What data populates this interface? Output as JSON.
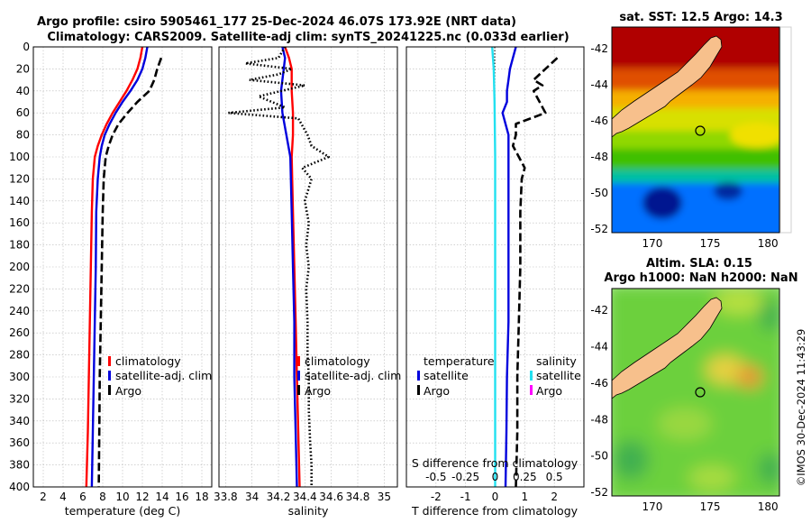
{
  "header": {
    "title_line1": "Argo profile: csiro 5905461_177 25-Dec-2024 46.07S 173.92E (NRT data)",
    "title_line2": "Climatology: CARS2009. Satellite-adj clim: synTS_20241225.nc (0.033d earlier)"
  },
  "watermark": "©IMOS 30-Dec-2024 11:43:29",
  "colors": {
    "climatology": "#ff0000",
    "satellite": "#0000dd",
    "argo": "#000000",
    "salinity_sat": "#22e0f0",
    "salinity_argo": "#ff00ff",
    "grid": "#b8b8b8",
    "land": "#f7c08c"
  },
  "chart_data": [
    {
      "id": "temperature",
      "type": "line",
      "xlabel": "temperature (deg C)",
      "xlim": [
        1,
        19
      ],
      "xticks": [
        2,
        4,
        6,
        8,
        10,
        12,
        14,
        16,
        18
      ],
      "ylim": [
        400,
        0
      ],
      "yticks": [
        0,
        20,
        40,
        60,
        80,
        100,
        120,
        140,
        160,
        180,
        200,
        220,
        240,
        260,
        280,
        300,
        320,
        340,
        360,
        380,
        400
      ],
      "legend": [
        "climatology",
        "satellite-adj. clim",
        "Argo"
      ],
      "series": [
        {
          "name": "climatology",
          "color": "#ff0000",
          "style": "solid",
          "points": [
            [
              12.0,
              0
            ],
            [
              11.8,
              10
            ],
            [
              11.5,
              20
            ],
            [
              11.0,
              30
            ],
            [
              10.4,
              40
            ],
            [
              9.7,
              50
            ],
            [
              9.0,
              60
            ],
            [
              8.4,
              70
            ],
            [
              7.9,
              80
            ],
            [
              7.5,
              90
            ],
            [
              7.2,
              100
            ],
            [
              7.0,
              120
            ],
            [
              6.9,
              150
            ],
            [
              6.8,
              200
            ],
            [
              6.7,
              250
            ],
            [
              6.6,
              300
            ],
            [
              6.5,
              350
            ],
            [
              6.35,
              400
            ]
          ]
        },
        {
          "name": "satellite-adj. clim",
          "color": "#0000dd",
          "style": "solid",
          "points": [
            [
              12.5,
              0
            ],
            [
              12.3,
              10
            ],
            [
              12.0,
              20
            ],
            [
              11.5,
              30
            ],
            [
              10.8,
              40
            ],
            [
              10.0,
              50
            ],
            [
              9.3,
              60
            ],
            [
              8.7,
              70
            ],
            [
              8.2,
              80
            ],
            [
              7.9,
              90
            ],
            [
              7.7,
              100
            ],
            [
              7.5,
              120
            ],
            [
              7.35,
              150
            ],
            [
              7.3,
              200
            ],
            [
              7.2,
              250
            ],
            [
              7.1,
              300
            ],
            [
              7.0,
              350
            ],
            [
              6.9,
              400
            ]
          ]
        },
        {
          "name": "Argo",
          "color": "#000000",
          "style": "dashed",
          "points": [
            [
              13.9,
              10
            ],
            [
              13.5,
              20
            ],
            [
              13.2,
              30
            ],
            [
              12.7,
              40
            ],
            [
              11.5,
              50
            ],
            [
              10.5,
              60
            ],
            [
              9.6,
              70
            ],
            [
              9.0,
              80
            ],
            [
              8.6,
              90
            ],
            [
              8.3,
              100
            ],
            [
              8.1,
              120
            ],
            [
              8.0,
              150
            ],
            [
              7.9,
              200
            ],
            [
              7.8,
              250
            ],
            [
              7.7,
              300
            ],
            [
              7.65,
              350
            ],
            [
              7.6,
              400
            ]
          ]
        }
      ]
    },
    {
      "id": "salinity",
      "type": "line",
      "xlabel": "salinity",
      "xlim": [
        33.75,
        35.1
      ],
      "xticks": [
        33.8,
        34,
        34.2,
        34.4,
        34.6,
        34.8,
        35
      ],
      "ylim": [
        400,
        0
      ],
      "legend": [
        "climatology",
        "satellite-adj. clim",
        "Argo"
      ],
      "series": [
        {
          "name": "climatology",
          "color": "#ff0000",
          "style": "solid",
          "points": [
            [
              34.25,
              0
            ],
            [
              34.28,
              10
            ],
            [
              34.3,
              20
            ],
            [
              34.3,
              40
            ],
            [
              34.31,
              60
            ],
            [
              34.31,
              80
            ],
            [
              34.3,
              100
            ],
            [
              34.31,
              150
            ],
            [
              34.32,
              200
            ],
            [
              34.33,
              250
            ],
            [
              34.34,
              300
            ],
            [
              34.35,
              350
            ],
            [
              34.36,
              400
            ]
          ]
        },
        {
          "name": "satellite-adj. clim",
          "color": "#0000dd",
          "style": "solid",
          "points": [
            [
              34.23,
              0
            ],
            [
              34.25,
              10
            ],
            [
              34.24,
              20
            ],
            [
              34.22,
              40
            ],
            [
              34.23,
              60
            ],
            [
              34.26,
              80
            ],
            [
              34.29,
              100
            ],
            [
              34.3,
              150
            ],
            [
              34.31,
              200
            ],
            [
              34.32,
              250
            ],
            [
              34.32,
              300
            ],
            [
              34.33,
              350
            ],
            [
              34.34,
              400
            ]
          ]
        },
        {
          "name": "Argo",
          "color": "#000000",
          "style": "dotted",
          "points": [
            [
              34.25,
              0
            ],
            [
              34.2,
              10
            ],
            [
              33.95,
              15
            ],
            [
              34.3,
              20
            ],
            [
              34.2,
              25
            ],
            [
              33.98,
              30
            ],
            [
              34.4,
              35
            ],
            [
              34.05,
              45
            ],
            [
              34.25,
              55
            ],
            [
              33.82,
              60
            ],
            [
              34.35,
              65
            ],
            [
              34.42,
              80
            ],
            [
              34.45,
              90
            ],
            [
              34.58,
              100
            ],
            [
              34.38,
              110
            ],
            [
              34.45,
              120
            ],
            [
              34.4,
              140
            ],
            [
              34.43,
              160
            ],
            [
              34.41,
              180
            ],
            [
              34.43,
              200
            ],
            [
              34.41,
              220
            ],
            [
              34.42,
              250
            ],
            [
              34.42,
              280
            ],
            [
              34.43,
              300
            ],
            [
              34.43,
              330
            ],
            [
              34.44,
              360
            ],
            [
              34.45,
              380
            ],
            [
              34.45,
              400
            ]
          ]
        }
      ]
    },
    {
      "id": "difference",
      "type": "line",
      "xlabel": "T difference from climatology",
      "xlim": [
        -3,
        3
      ],
      "xticks": [
        -2,
        -1,
        0,
        1,
        2
      ],
      "top_axis_label": "S difference from climatology",
      "top_ticks": [
        "-0.5",
        "-0.25",
        "0",
        "0.25",
        "0.5"
      ],
      "top_tick_positions_T": [
        -2,
        -1,
        0,
        1,
        2
      ],
      "ylim": [
        400,
        0
      ],
      "legend_temperature": [
        "temperature",
        "satellite",
        "Argo"
      ],
      "legend_salinity": [
        "salinity",
        "satellite",
        "Argo"
      ],
      "series": [
        {
          "name": "salinity satellite",
          "color": "#22e0f0",
          "style": "solid",
          "points": [
            [
              -0.1,
              0
            ],
            [
              -0.05,
              20
            ],
            [
              -0.02,
              50
            ],
            [
              0.0,
              100
            ],
            [
              0.0,
              200
            ],
            [
              0.0,
              300
            ],
            [
              0.0,
              400
            ]
          ]
        },
        {
          "name": "temperature satellite",
          "color": "#0000dd",
          "style": "solid",
          "points": [
            [
              0.7,
              0
            ],
            [
              0.6,
              10
            ],
            [
              0.5,
              20
            ],
            [
              0.45,
              30
            ],
            [
              0.4,
              40
            ],
            [
              0.4,
              50
            ],
            [
              0.25,
              60
            ],
            [
              0.35,
              70
            ],
            [
              0.45,
              80
            ],
            [
              0.45,
              100
            ],
            [
              0.45,
              150
            ],
            [
              0.45,
              200
            ],
            [
              0.45,
              250
            ],
            [
              0.4,
              300
            ],
            [
              0.38,
              350
            ],
            [
              0.35,
              400
            ]
          ]
        },
        {
          "name": "temperature Argo",
          "color": "#000000",
          "style": "dashed",
          "points": [
            [
              2.1,
              10
            ],
            [
              1.7,
              20
            ],
            [
              1.3,
              30
            ],
            [
              1.6,
              35
            ],
            [
              1.3,
              40
            ],
            [
              1.5,
              50
            ],
            [
              1.7,
              60
            ],
            [
              0.7,
              70
            ],
            [
              0.7,
              80
            ],
            [
              0.6,
              90
            ],
            [
              0.8,
              100
            ],
            [
              1.0,
              110
            ],
            [
              0.9,
              120
            ],
            [
              0.85,
              150
            ],
            [
              0.85,
              200
            ],
            [
              0.8,
              250
            ],
            [
              0.75,
              300
            ],
            [
              0.75,
              350
            ],
            [
              0.7,
              400
            ]
          ]
        }
      ]
    },
    {
      "id": "sst_map",
      "type": "heatmap",
      "title": "sat. SST: 12.5 Argo: 14.3",
      "xticks": [
        170,
        175,
        180
      ],
      "yticks": [
        -42,
        -44,
        -46,
        -48,
        -50,
        -52
      ],
      "xlim": [
        166.5,
        181
      ],
      "ylim": [
        -52.2,
        -40.8
      ],
      "float_position": [
        173.92,
        -46.07
      ]
    },
    {
      "id": "sla_map",
      "type": "heatmap",
      "title_line1": "Altim. SLA: 0.15",
      "title_line2": "Argo h1000: NaN h2000: NaN",
      "xticks": [
        170,
        175,
        180
      ],
      "yticks": [
        -42,
        -44,
        -46,
        -48,
        -50,
        -52
      ],
      "xlim": [
        166.5,
        181
      ],
      "ylim": [
        -52.2,
        -40.8
      ],
      "float_position": [
        173.92,
        -46.07
      ]
    }
  ]
}
